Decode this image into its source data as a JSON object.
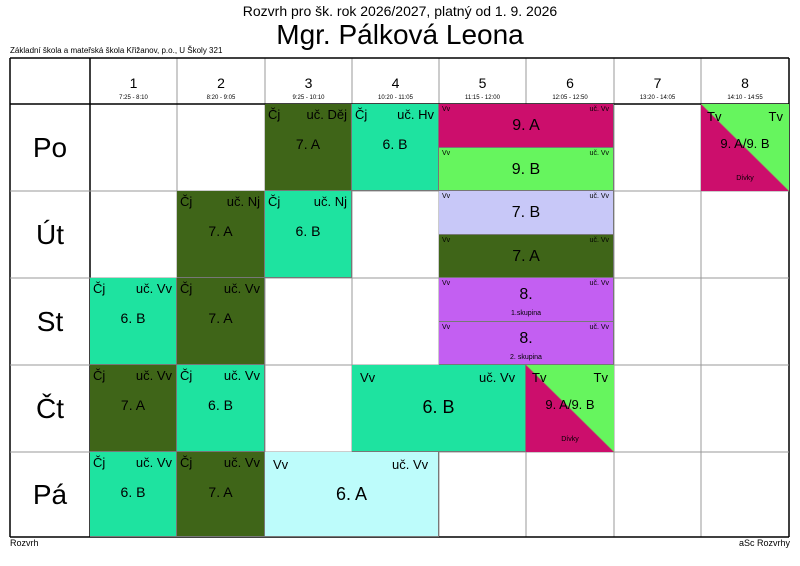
{
  "header": {
    "subtitle": "Rozvrh pro šk. rok 2026/2027, platný od 1. 9. 2026",
    "teacher": "Mgr. Pálková Leona",
    "school": "Základní škola a mateřská škola Křižanov, p.o., U Školy 321"
  },
  "footer": {
    "left": "Rozvrh",
    "right": "aSc Rozvrhy"
  },
  "periods": [
    {
      "num": "1",
      "time": "7:25 - 8:10"
    },
    {
      "num": "2",
      "time": "8:20 - 9:05"
    },
    {
      "num": "3",
      "time": "9:25 - 10:10"
    },
    {
      "num": "4",
      "time": "10:20 - 11:05"
    },
    {
      "num": "5",
      "time": "11:15 - 12:00"
    },
    {
      "num": "6",
      "time": "12:05 - 12:50"
    },
    {
      "num": "7",
      "time": "13:20 - 14:05"
    },
    {
      "num": "8",
      "time": "14:10 - 14:55"
    }
  ],
  "days": [
    "Po",
    "Út",
    "St",
    "Čt",
    "Pá"
  ],
  "colors": {
    "dark_green": "#3f6518",
    "teal": "#1ee3a0",
    "magenta": "#cc0e6c",
    "light_green": "#66f55e",
    "lavender": "#c8c8f8",
    "violet": "#c35ff2",
    "light_cyan": "#bdfcfb"
  },
  "lessons": [
    {
      "day": 0,
      "p": 2,
      "span": 1,
      "part": "full",
      "size": "big",
      "subject": "Čj",
      "room": "uč. Děj",
      "cls": "7. A",
      "color": "#3f6518"
    },
    {
      "day": 0,
      "p": 3,
      "span": 1,
      "part": "full",
      "size": "big",
      "subject": "Čj",
      "room": "uč. Hv",
      "cls": "6. B",
      "color": "#1ee3a0"
    },
    {
      "day": 0,
      "p": 4,
      "span": 2,
      "part": "top",
      "size": "small",
      "subject": "Vv",
      "room": "uč. Vv",
      "cls": "9. A",
      "color": "#cc0e6c"
    },
    {
      "day": 0,
      "p": 4,
      "span": 2,
      "part": "bottom",
      "size": "small",
      "subject": "Vv",
      "room": "uč. Vv",
      "cls": "9. B",
      "color": "#66f55e"
    },
    {
      "day": 1,
      "p": 1,
      "span": 1,
      "part": "full",
      "size": "big",
      "subject": "Čj",
      "room": "uč. Nj",
      "cls": "7. A",
      "color": "#3f6518"
    },
    {
      "day": 1,
      "p": 2,
      "span": 1,
      "part": "full",
      "size": "big",
      "subject": "Čj",
      "room": "uč. Nj",
      "cls": "6. B",
      "color": "#1ee3a0"
    },
    {
      "day": 1,
      "p": 4,
      "span": 2,
      "part": "top",
      "size": "small",
      "subject": "Vv",
      "room": "uč. Vv",
      "cls": "7. B",
      "color": "#c8c8f8"
    },
    {
      "day": 1,
      "p": 4,
      "span": 2,
      "part": "bottom",
      "size": "small",
      "subject": "Vv",
      "room": "uč. Vv",
      "cls": "7. A",
      "color": "#3f6518"
    },
    {
      "day": 2,
      "p": 0,
      "span": 1,
      "part": "full",
      "size": "big",
      "subject": "Čj",
      "room": "uč. Vv",
      "cls": "6. B",
      "color": "#1ee3a0"
    },
    {
      "day": 2,
      "p": 1,
      "span": 1,
      "part": "full",
      "size": "big",
      "subject": "Čj",
      "room": "uč. Vv",
      "cls": "7. A",
      "color": "#3f6518"
    },
    {
      "day": 2,
      "p": 4,
      "span": 2,
      "part": "top",
      "size": "small",
      "subject": "Vv",
      "room": "uč. Vv",
      "cls": "8.",
      "group": "1.skupina",
      "color": "#c35ff2"
    },
    {
      "day": 2,
      "p": 4,
      "span": 2,
      "part": "bottom",
      "size": "small",
      "subject": "Vv",
      "room": "uč. Vv",
      "cls": "8.",
      "group": "2. skupina",
      "color": "#c35ff2"
    },
    {
      "day": 3,
      "p": 0,
      "span": 1,
      "part": "full",
      "size": "big",
      "subject": "Čj",
      "room": "uč. Vv",
      "cls": "7. A",
      "color": "#3f6518"
    },
    {
      "day": 3,
      "p": 1,
      "span": 1,
      "part": "full",
      "size": "big",
      "subject": "Čj",
      "room": "uč. Vv",
      "cls": "6. B",
      "color": "#1ee3a0"
    },
    {
      "day": 3,
      "p": 3,
      "span": 2,
      "part": "full",
      "size": "wide",
      "subject": "Vv",
      "room": "uč. Vv",
      "cls": "6. B",
      "color": "#1ee3a0"
    },
    {
      "day": 4,
      "p": 0,
      "span": 1,
      "part": "full",
      "size": "big",
      "subject": "Čj",
      "room": "uč. Vv",
      "cls": "6. B",
      "color": "#1ee3a0"
    },
    {
      "day": 4,
      "p": 1,
      "span": 1,
      "part": "full",
      "size": "big",
      "subject": "Čj",
      "room": "uč. Vv",
      "cls": "7. A",
      "color": "#3f6518"
    },
    {
      "day": 4,
      "p": 2,
      "span": 2,
      "part": "full",
      "size": "wide",
      "subject": "Vv",
      "room": "uč. Vv",
      "cls": "6. A",
      "color": "#bdfcfb"
    }
  ],
  "pe_lessons": [
    {
      "day": 0,
      "p": 7,
      "subject_left": "Tv",
      "subject_right": "Tv",
      "cls": "9. A/9. B",
      "note": "Dívky",
      "color_a": "#cc0e6c",
      "color_b": "#66f55e"
    },
    {
      "day": 3,
      "p": 5,
      "subject_left": "Tv",
      "subject_right": "Tv",
      "cls": "9. A/9. B",
      "note": "Dívky",
      "color_a": "#cc0e6c",
      "color_b": "#66f55e"
    }
  ]
}
